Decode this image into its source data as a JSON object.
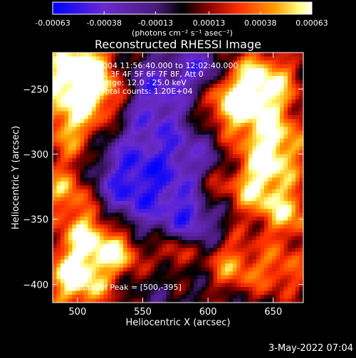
{
  "chart_data": {
    "type": "heatmap",
    "title": "Reconstructed RHESSI Image",
    "xlabel": "Heliocentric X (arcsec)",
    "ylabel": "Heliocentric Y (arcsec)",
    "xlim": [
      481,
      673
    ],
    "ylim": [
      -414,
      -222
    ],
    "x_ticks": [
      500,
      550,
      600,
      650
    ],
    "y_ticks": [
      -400,
      -350,
      -300,
      -250
    ],
    "colorbar": {
      "min": -0.00063,
      "max": 0.00063,
      "tick_values": [
        -0.00063,
        -0.00038,
        -0.00013,
        0.00013,
        0.00038,
        0.00063
      ],
      "tick_labels": [
        "-0.00063",
        "-0.00038",
        "-0.00013",
        "0.00013",
        "0.00038",
        "0.00063"
      ],
      "unit_label": "(photons cm⁻² s⁻¹ asec⁻²)"
    },
    "annotations": [
      "26-Aug-2004 11:56:40.000 to 12:02:40.000",
      "Detectors: 3F 4F 5F 6F 7F 8F, Att 0",
      "Energy Range: 12.0 - 25.0 keV",
      "Clean     Total counts: 1.20E+04"
    ],
    "peak_label": "Position of Peak = [500,-395]",
    "footer_date": "3-May-2022 07:04",
    "grid": false,
    "colormap": [
      "#0000ff",
      "#6a2ad0",
      "#5a2090",
      "#000000",
      "#8a0000",
      "#ff3000",
      "#ffa000",
      "#ffff80",
      "#ffffff"
    ]
  }
}
